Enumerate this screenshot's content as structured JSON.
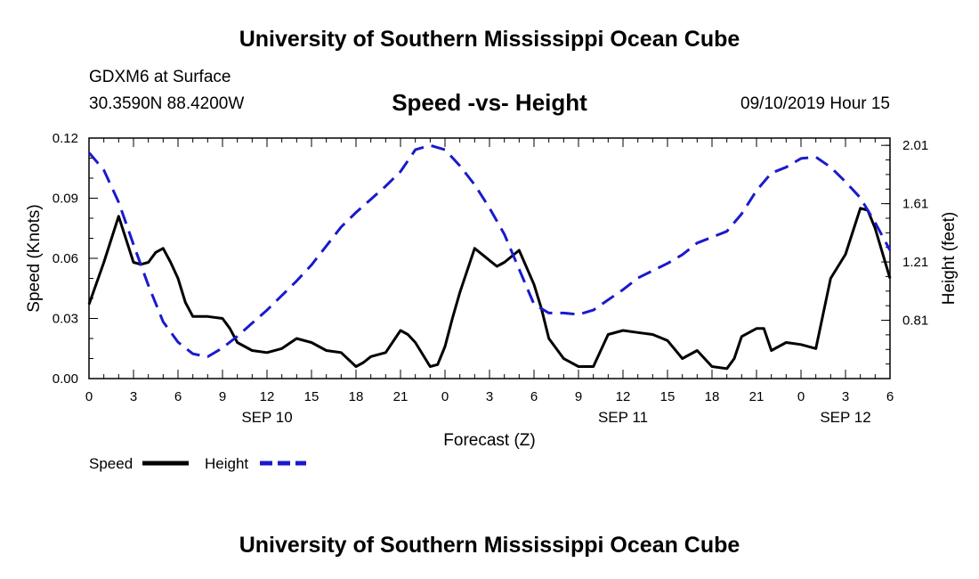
{
  "header": {
    "title": "University of Southern Mississippi Ocean Cube",
    "station": "GDXM6 at Surface",
    "coords": "30.3590N 88.4200W",
    "subtitle": "Speed -vs- Height",
    "datetime": "09/10/2019 Hour 15"
  },
  "footer": {
    "title": "University of Southern Mississippi Ocean Cube"
  },
  "colors": {
    "speed": "#000000",
    "height": "#1a1acc",
    "axis": "#000000"
  },
  "chart_data": {
    "type": "line",
    "title": "Speed -vs- Height",
    "xlabel": "Forecast (Z)",
    "ylabel_left": "Speed (Knots)",
    "ylabel_right": "Height (feet)",
    "x_range_hours": [
      0,
      54
    ],
    "y_left_range": [
      0,
      0.12
    ],
    "y_right_range": [
      0.41,
      2.06
    ],
    "y_left_ticks": [
      "0.00",
      "0.03",
      "0.06",
      "0.09",
      "0.12"
    ],
    "y_left_tick_values": [
      0,
      0.03,
      0.06,
      0.09,
      0.12
    ],
    "y_right_ticks": [
      "0.81",
      "1.21",
      "1.61",
      "2.01"
    ],
    "y_right_tick_values": [
      0.81,
      1.21,
      1.61,
      2.01
    ],
    "x_tick_labels": [
      "0",
      "3",
      "6",
      "9",
      "12",
      "15",
      "18",
      "21",
      "0",
      "3",
      "6",
      "9",
      "12",
      "15",
      "18",
      "21",
      "0",
      "3",
      "6"
    ],
    "x_tick_hours": [
      0,
      3,
      6,
      9,
      12,
      15,
      18,
      21,
      24,
      27,
      30,
      33,
      36,
      39,
      42,
      45,
      48,
      51,
      54
    ],
    "date_labels": [
      {
        "label": "SEP 10",
        "hour": 12
      },
      {
        "label": "SEP 11",
        "hour": 36
      },
      {
        "label": "SEP 12",
        "hour": 51
      }
    ],
    "legend": [
      {
        "name": "Speed",
        "style": "solid"
      },
      {
        "name": "Height",
        "style": "dashed"
      }
    ],
    "series": [
      {
        "name": "Speed",
        "x": [
          0,
          1,
          2,
          3,
          3.5,
          4,
          4.5,
          5,
          5.5,
          6,
          6.5,
          7,
          8,
          9,
          9.5,
          10,
          11,
          12,
          13,
          14,
          15,
          16,
          17,
          18,
          18.5,
          19,
          20,
          21,
          21.5,
          22,
          23,
          23.5,
          24,
          24.5,
          25,
          26,
          27,
          27.5,
          28,
          29,
          30,
          30.5,
          31,
          32,
          33,
          34,
          35,
          36,
          37,
          38,
          39,
          40,
          41,
          42,
          43,
          43.5,
          44,
          45,
          45.5,
          46,
          47,
          48,
          49,
          50,
          51,
          52,
          52.5,
          53,
          54
        ],
        "values": [
          0.037,
          0.058,
          0.081,
          0.058,
          0.057,
          0.058,
          0.063,
          0.065,
          0.058,
          0.05,
          0.038,
          0.031,
          0.031,
          0.03,
          0.025,
          0.018,
          0.014,
          0.013,
          0.015,
          0.02,
          0.018,
          0.014,
          0.013,
          0.006,
          0.008,
          0.011,
          0.013,
          0.024,
          0.022,
          0.018,
          0.006,
          0.007,
          0.016,
          0.03,
          0.043,
          0.065,
          0.059,
          0.056,
          0.058,
          0.064,
          0.047,
          0.035,
          0.02,
          0.01,
          0.006,
          0.006,
          0.022,
          0.024,
          0.023,
          0.022,
          0.019,
          0.01,
          0.014,
          0.006,
          0.005,
          0.01,
          0.021,
          0.025,
          0.025,
          0.014,
          0.018,
          0.017,
          0.015,
          0.05,
          0.062,
          0.085,
          0.084,
          0.075,
          0.05
        ]
      },
      {
        "name": "Height",
        "x": [
          0,
          1,
          2,
          3,
          4,
          5,
          6,
          7,
          8,
          9,
          10,
          11,
          12,
          13,
          14,
          15,
          16,
          17,
          18,
          19,
          20,
          21,
          22,
          23,
          24,
          25,
          26,
          27,
          28,
          29,
          30,
          31,
          32,
          33,
          34,
          35,
          36,
          37,
          38,
          39,
          40,
          41,
          42,
          43,
          44,
          45,
          46,
          47,
          48,
          49,
          50,
          51,
          52,
          53,
          54
        ],
        "values": [
          1.96,
          1.84,
          1.62,
          1.33,
          1.05,
          0.8,
          0.66,
          0.58,
          0.56,
          0.62,
          0.7,
          0.79,
          0.88,
          0.98,
          1.08,
          1.19,
          1.32,
          1.45,
          1.55,
          1.64,
          1.73,
          1.83,
          1.98,
          2.01,
          1.98,
          1.87,
          1.74,
          1.58,
          1.4,
          1.16,
          0.92,
          0.86,
          0.86,
          0.85,
          0.88,
          0.95,
          1.02,
          1.1,
          1.15,
          1.2,
          1.26,
          1.34,
          1.38,
          1.42,
          1.54,
          1.7,
          1.82,
          1.86,
          1.92,
          1.93,
          1.86,
          1.76,
          1.65,
          1.48,
          1.29
        ]
      }
    ]
  }
}
